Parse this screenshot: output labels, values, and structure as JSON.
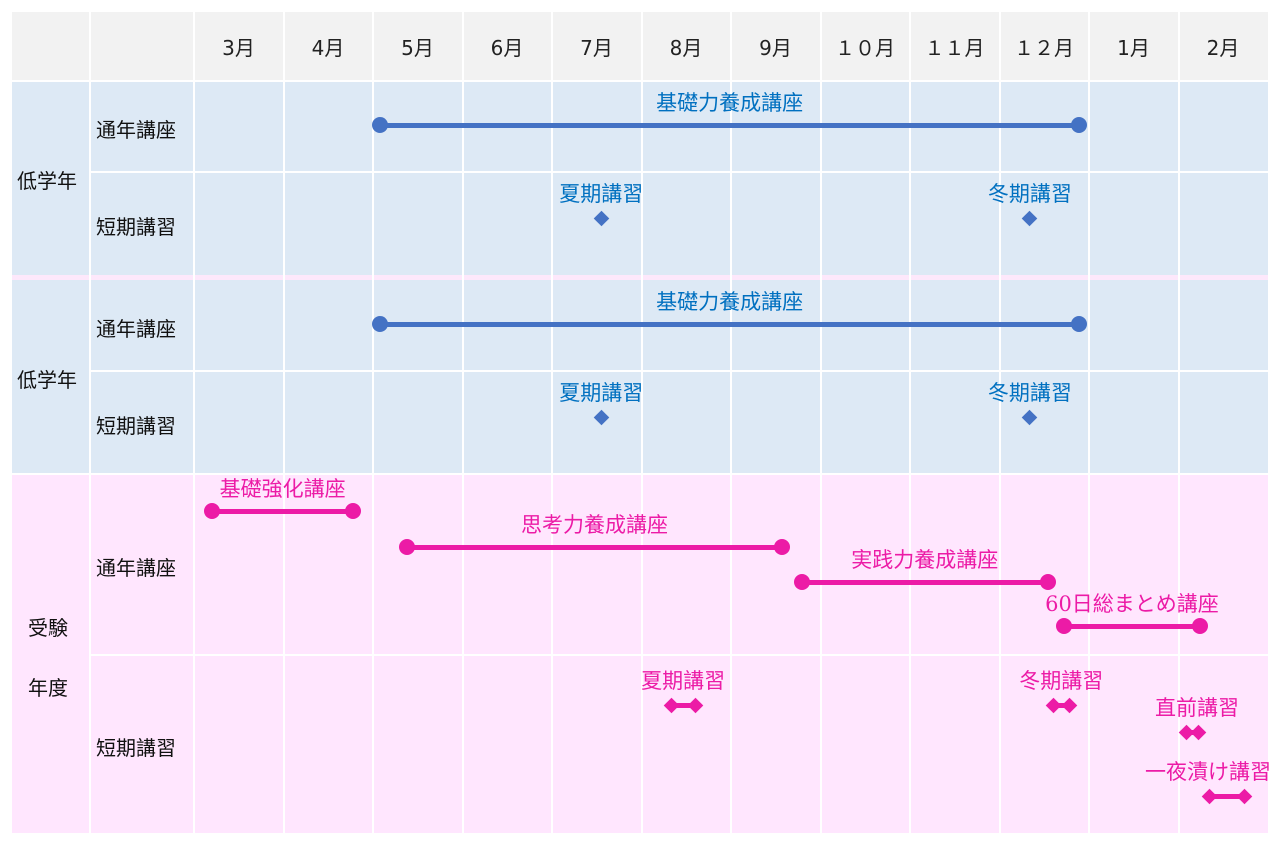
{
  "colors": {
    "blue_line": "#4472c4",
    "blue_text": "#0070c0",
    "pink": "#ec1ba6",
    "blue_bg": "#dde9f5",
    "pink_bg": "#ffe6fe"
  },
  "months": [
    "3月",
    "4月",
    "5月",
    "6月",
    "7月",
    "8月",
    "9月",
    "１０月",
    "１１月",
    "１２月",
    "1月",
    "2月"
  ],
  "sections": [
    {
      "label": "低学年",
      "rows": [
        "通年講座",
        "短期講習"
      ]
    },
    {
      "label": "低学年",
      "rows": [
        "通年講座",
        "短期講習"
      ]
    },
    {
      "label_lines": [
        "受験",
        "年度"
      ],
      "rows": [
        "通年講座",
        "短期講習"
      ]
    }
  ],
  "items": [
    {
      "label": "基礎力養成講座",
      "type": "bar",
      "start": 2.08,
      "end": 9.89,
      "color": "blue"
    },
    {
      "label": "夏期講習",
      "type": "point",
      "start": 4.55,
      "end": 4.55,
      "color": "blue"
    },
    {
      "label": "冬期講習",
      "type": "point",
      "start": 9.34,
      "end": 9.34,
      "color": "blue"
    },
    {
      "label": "基礎力養成講座",
      "type": "bar",
      "start": 2.08,
      "end": 9.89,
      "color": "blue"
    },
    {
      "label": "夏期講習",
      "type": "point",
      "start": 4.55,
      "end": 4.55,
      "color": "blue"
    },
    {
      "label": "冬期講習",
      "type": "point",
      "start": 9.34,
      "end": 9.34,
      "color": "blue"
    },
    {
      "label": "基礎強化講座",
      "type": "bar",
      "start": 0.2,
      "end": 1.78,
      "color": "pink"
    },
    {
      "label": "思考力養成講座",
      "type": "bar",
      "start": 2.38,
      "end": 6.57,
      "color": "pink"
    },
    {
      "label": "実践力養成講座",
      "type": "bar",
      "start": 6.79,
      "end": 9.54,
      "color": "pink"
    },
    {
      "label": "60日総まとめ講座",
      "type": "bar",
      "start": 9.72,
      "end": 11.24,
      "color": "pink"
    },
    {
      "label": "夏期講習",
      "type": "short",
      "start": 5.33,
      "end": 5.6,
      "color": "pink"
    },
    {
      "label": "冬期講習",
      "type": "short",
      "start": 9.6,
      "end": 9.78,
      "color": "pink"
    },
    {
      "label": "直前講習",
      "type": "short",
      "start": 11.09,
      "end": 11.22,
      "color": "pink"
    },
    {
      "label": "一夜漬け講習",
      "type": "short",
      "start": 11.35,
      "end": 11.74,
      "color": "pink"
    }
  ]
}
